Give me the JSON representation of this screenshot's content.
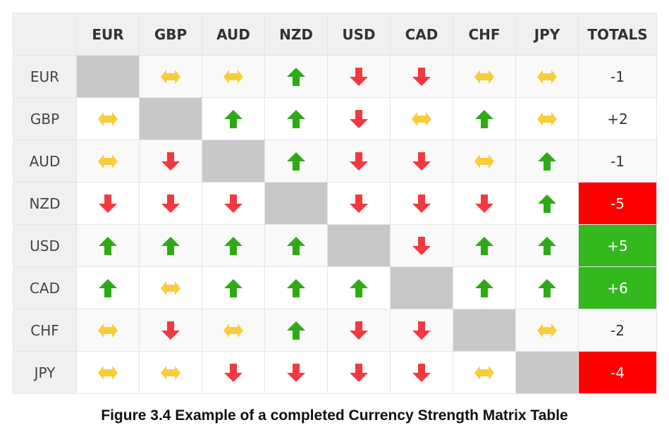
{
  "table": {
    "corner": "",
    "columns": [
      "EUR",
      "GBP",
      "AUD",
      "NZD",
      "USD",
      "CAD",
      "CHF",
      "JPY",
      "TOTALS"
    ],
    "rows": [
      {
        "label": "EUR",
        "cells": [
          "none",
          "neutral",
          "neutral",
          "up",
          "down",
          "down",
          "neutral",
          "neutral"
        ],
        "total": "-1",
        "total_highlight": "none"
      },
      {
        "label": "GBP",
        "cells": [
          "neutral",
          "none",
          "up",
          "up",
          "down",
          "neutral",
          "up",
          "neutral"
        ],
        "total": "+2",
        "total_highlight": "none"
      },
      {
        "label": "AUD",
        "cells": [
          "neutral",
          "down",
          "none",
          "up",
          "down",
          "down",
          "neutral",
          "up"
        ],
        "total": "-1",
        "total_highlight": "none"
      },
      {
        "label": "NZD",
        "cells": [
          "down",
          "down",
          "down",
          "none",
          "down",
          "down",
          "down",
          "up"
        ],
        "total": "-5",
        "total_highlight": "negative"
      },
      {
        "label": "USD",
        "cells": [
          "up",
          "up",
          "up",
          "up",
          "none",
          "down",
          "up",
          "up"
        ],
        "total": "+5",
        "total_highlight": "positive"
      },
      {
        "label": "CAD",
        "cells": [
          "up",
          "neutral",
          "up",
          "up",
          "up",
          "none",
          "up",
          "up"
        ],
        "total": "+6",
        "total_highlight": "positive"
      },
      {
        "label": "CHF",
        "cells": [
          "neutral",
          "down",
          "neutral",
          "up",
          "down",
          "down",
          "none",
          "neutral"
        ],
        "total": "-2",
        "total_highlight": "none"
      },
      {
        "label": "JPY",
        "cells": [
          "neutral",
          "neutral",
          "down",
          "down",
          "down",
          "down",
          "neutral",
          "none"
        ],
        "total": "-4",
        "total_highlight": "negative"
      }
    ]
  },
  "icons": {
    "up": "arrow-up-icon",
    "down": "arrow-down-icon",
    "neutral": "arrow-left-right-icon"
  },
  "colors": {
    "up": "#2eaa16",
    "down": "#f5373f",
    "neutral": "#f9cd3a",
    "diagonal": "#c8c8c8",
    "total_positive": "#33b81e",
    "total_negative": "#ff0000",
    "header_bg": "#f0f0f0"
  },
  "caption": "Figure 3.4 Example of a completed Currency Strength Matrix Table"
}
